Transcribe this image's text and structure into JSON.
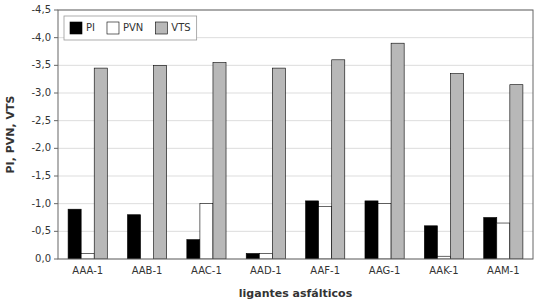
{
  "chart_data": {
    "type": "bar",
    "categories": [
      "AAA-1",
      "AAB-1",
      "AAC-1",
      "AAD-1",
      "AAF-1",
      "AAG-1",
      "AAK-1",
      "AAM-1"
    ],
    "series": [
      {
        "name": "PI",
        "color": "#000000",
        "values": [
          -0.9,
          -0.8,
          -0.35,
          -0.1,
          -1.05,
          -1.05,
          -0.6,
          -0.75
        ]
      },
      {
        "name": "PVN",
        "color": "#ffffff",
        "values": [
          -0.1,
          0.0,
          -1.0,
          -0.1,
          -0.95,
          -1.0,
          -0.05,
          -0.65
        ]
      },
      {
        "name": "VTS",
        "color": "#b8b8b8",
        "values": [
          -3.45,
          -3.5,
          -3.55,
          -3.45,
          -3.6,
          -3.9,
          -3.35,
          -3.15
        ]
      }
    ],
    "xlabel": "ligantes asfálticos",
    "ylabel": "PI, PVN, VTS",
    "ylim": [
      0.0,
      -4.5
    ],
    "yticks": [
      {
        "value": 0.0,
        "label": "0,0"
      },
      {
        "value": -0.5,
        "label": "-0,5"
      },
      {
        "value": -1.0,
        "label": "-1,0"
      },
      {
        "value": -1.5,
        "label": "-1,5"
      },
      {
        "value": -2.0,
        "label": "-2,0"
      },
      {
        "value": -2.5,
        "label": "-2,5"
      },
      {
        "value": -3.0,
        "label": "-3,0"
      },
      {
        "value": -3.5,
        "label": "-3,5"
      },
      {
        "value": -4.0,
        "label": "-4,0"
      },
      {
        "value": -4.5,
        "label": "-4,5"
      }
    ],
    "grid": true,
    "legend": "upper left"
  }
}
